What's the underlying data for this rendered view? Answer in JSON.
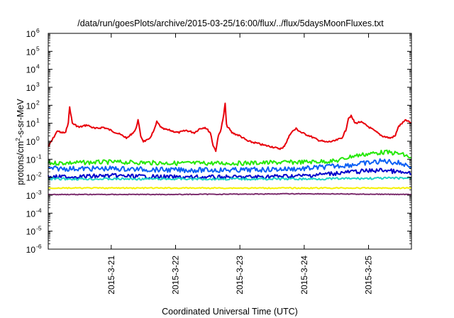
{
  "chart_data": {
    "type": "line",
    "title": "/data/run/goesPlots/archive/2015-03-25/16:00/flux/../flux/5daysMoonFluxes.txt",
    "xlabel": "Coordinated Universal Time (UTC)",
    "ylabel_parts": [
      "protons/cm",
      "2",
      "-s-sr-MeV"
    ],
    "yscale": "log",
    "ylim": [
      1e-06,
      1000000.0
    ],
    "y_ticks": [
      {
        "base": "10",
        "exp": "-6",
        "value": 1e-06
      },
      {
        "base": "10",
        "exp": "-5",
        "value": 1e-05
      },
      {
        "base": "10",
        "exp": "-4",
        "value": 0.0001
      },
      {
        "base": "10",
        "exp": "-3",
        "value": 0.001
      },
      {
        "base": "10",
        "exp": "-2",
        "value": 0.01
      },
      {
        "base": "10",
        "exp": "-1",
        "value": 0.1
      },
      {
        "base": "10",
        "exp": "0",
        "value": 1
      },
      {
        "base": "10",
        "exp": "1",
        "value": 10
      },
      {
        "base": "10",
        "exp": "2",
        "value": 100
      },
      {
        "base": "10",
        "exp": "3",
        "value": 1000
      },
      {
        "base": "10",
        "exp": "4",
        "value": 10000
      },
      {
        "base": "10",
        "exp": "5",
        "value": 100000
      },
      {
        "base": "10",
        "exp": "6",
        "value": 1000000
      }
    ],
    "xlim": [
      "2015-03-20T00:30",
      "2015-03-25T16:00"
    ],
    "x_ticks": [
      {
        "label": "2015-3-21",
        "value": "2015-03-21T00:00"
      },
      {
        "label": "2015-3-22",
        "value": "2015-03-22T00:00"
      },
      {
        "label": "2015-3-23",
        "value": "2015-03-23T00:00"
      },
      {
        "label": "2015-3-24",
        "value": "2015-03-24T00:00"
      },
      {
        "label": "2015-3-25",
        "value": "2015-03-25T00:00"
      }
    ],
    "grid": false,
    "legend": "none",
    "series": [
      {
        "color": "#e8000b",
        "points": [
          [
            "2015-03-20T00:30",
            0.5
          ],
          [
            "2015-03-20T02:00",
            1.2
          ],
          [
            "2015-03-20T04:00",
            4
          ],
          [
            "2015-03-20T05:00",
            3
          ],
          [
            "2015-03-20T07:00",
            3
          ],
          [
            "2015-03-20T08:00",
            12
          ],
          [
            "2015-03-20T08:30",
            80
          ],
          [
            "2015-03-20T09:30",
            10
          ],
          [
            "2015-03-20T12:00",
            6
          ],
          [
            "2015-03-20T15:00",
            8
          ],
          [
            "2015-03-20T18:00",
            5
          ],
          [
            "2015-03-20T21:00",
            6
          ],
          [
            "2015-03-21T00:00",
            4
          ],
          [
            "2015-03-21T03:00",
            2.5
          ],
          [
            "2015-03-21T06:00",
            1.5
          ],
          [
            "2015-03-21T07:30",
            2.5
          ],
          [
            "2015-03-21T09:00",
            4
          ],
          [
            "2015-03-21T10:00",
            15
          ],
          [
            "2015-03-21T11:00",
            2
          ],
          [
            "2015-03-21T12:00",
            1
          ],
          [
            "2015-03-21T14:00",
            1.2
          ],
          [
            "2015-03-21T16:00",
            4
          ],
          [
            "2015-03-21T17:00",
            12
          ],
          [
            "2015-03-21T19:00",
            5
          ],
          [
            "2015-03-21T22:00",
            4
          ],
          [
            "2015-03-22T01:00",
            3
          ],
          [
            "2015-03-22T04:00",
            4
          ],
          [
            "2015-03-22T07:00",
            3
          ],
          [
            "2015-03-22T09:00",
            5
          ],
          [
            "2015-03-22T11:00",
            6
          ],
          [
            "2015-03-22T13:00",
            3
          ],
          [
            "2015-03-22T14:00",
            0.6
          ],
          [
            "2015-03-22T15:00",
            0.3
          ],
          [
            "2015-03-22T16:00",
            2
          ],
          [
            "2015-03-22T17:00",
            5
          ],
          [
            "2015-03-22T18:00",
            30
          ],
          [
            "2015-03-22T18:30",
            130
          ],
          [
            "2015-03-22T19:00",
            8
          ],
          [
            "2015-03-22T21:00",
            3
          ],
          [
            "2015-03-23T00:00",
            2
          ],
          [
            "2015-03-23T03:00",
            1
          ],
          [
            "2015-03-23T06:00",
            0.8
          ],
          [
            "2015-03-23T09:00",
            0.6
          ],
          [
            "2015-03-23T12:00",
            0.5
          ],
          [
            "2015-03-23T14:00",
            0.4
          ],
          [
            "2015-03-23T16:00",
            0.4
          ],
          [
            "2015-03-23T17:30",
            1
          ],
          [
            "2015-03-23T19:00",
            3
          ],
          [
            "2015-03-23T21:00",
            5
          ],
          [
            "2015-03-23T23:00",
            3
          ],
          [
            "2015-03-24T02:00",
            2
          ],
          [
            "2015-03-24T05:00",
            1.2
          ],
          [
            "2015-03-24T08:00",
            0.9
          ],
          [
            "2015-03-24T11:00",
            1
          ],
          [
            "2015-03-24T14:00",
            1.5
          ],
          [
            "2015-03-24T15:30",
            4
          ],
          [
            "2015-03-24T16:30",
            20
          ],
          [
            "2015-03-24T17:30",
            25
          ],
          [
            "2015-03-24T19:00",
            10
          ],
          [
            "2015-03-24T21:00",
            12
          ],
          [
            "2015-03-24T23:00",
            8
          ],
          [
            "2015-03-25T02:00",
            4
          ],
          [
            "2015-03-25T05:00",
            2
          ],
          [
            "2015-03-25T08:00",
            1.5
          ],
          [
            "2015-03-25T10:00",
            2
          ],
          [
            "2015-03-25T11:00",
            6
          ],
          [
            "2015-03-25T12:30",
            10
          ],
          [
            "2015-03-25T14:00",
            15
          ],
          [
            "2015-03-25T15:00",
            12
          ],
          [
            "2015-03-25T16:00",
            10
          ]
        ]
      },
      {
        "color": "#25e808",
        "points": [
          [
            "2015-03-20T00:30",
            0.06
          ],
          [
            "2015-03-21T00:00",
            0.07
          ],
          [
            "2015-03-22T00:00",
            0.06
          ],
          [
            "2015-03-23T00:00",
            0.06
          ],
          [
            "2015-03-24T00:00",
            0.07
          ],
          [
            "2015-03-24T12:00",
            0.08
          ],
          [
            "2015-03-24T18:00",
            0.15
          ],
          [
            "2015-03-25T00:00",
            0.2
          ],
          [
            "2015-03-25T06:00",
            0.25
          ],
          [
            "2015-03-25T12:00",
            0.2
          ],
          [
            "2015-03-25T16:00",
            0.12
          ]
        ]
      },
      {
        "color": "#0a5ff5",
        "points": [
          [
            "2015-03-20T00:30",
            0.03
          ],
          [
            "2015-03-21T00:00",
            0.03
          ],
          [
            "2015-03-22T00:00",
            0.025
          ],
          [
            "2015-03-23T00:00",
            0.025
          ],
          [
            "2015-03-24T00:00",
            0.03
          ],
          [
            "2015-03-24T18:00",
            0.05
          ],
          [
            "2015-03-25T06:00",
            0.08
          ],
          [
            "2015-03-25T12:00",
            0.06
          ],
          [
            "2015-03-25T16:00",
            0.04
          ]
        ]
      },
      {
        "color": "#0000cc",
        "points": [
          [
            "2015-03-20T00:30",
            0.01
          ],
          [
            "2015-03-21T00:00",
            0.012
          ],
          [
            "2015-03-22T00:00",
            0.01
          ],
          [
            "2015-03-23T00:00",
            0.01
          ],
          [
            "2015-03-24T00:00",
            0.012
          ],
          [
            "2015-03-24T18:00",
            0.02
          ],
          [
            "2015-03-25T06:00",
            0.025
          ],
          [
            "2015-03-25T16:00",
            0.015
          ]
        ]
      },
      {
        "color": "#1fd4c4",
        "points": [
          [
            "2015-03-20T00:30",
            0.008
          ],
          [
            "2015-03-22T00:00",
            0.008
          ],
          [
            "2015-03-24T00:00",
            0.008
          ],
          [
            "2015-03-25T16:00",
            0.009
          ]
        ]
      },
      {
        "color": "#f5f000",
        "points": [
          [
            "2015-03-20T00:30",
            0.0025
          ],
          [
            "2015-03-22T00:00",
            0.0025
          ],
          [
            "2015-03-24T00:00",
            0.0025
          ],
          [
            "2015-03-25T16:00",
            0.0025
          ]
        ]
      },
      {
        "color": "#7d2e6e",
        "points": [
          [
            "2015-03-20T00:30",
            0.0011
          ],
          [
            "2015-03-22T00:00",
            0.0011
          ],
          [
            "2015-03-24T00:00",
            0.0012
          ],
          [
            "2015-03-25T16:00",
            0.0011
          ]
        ]
      }
    ]
  }
}
